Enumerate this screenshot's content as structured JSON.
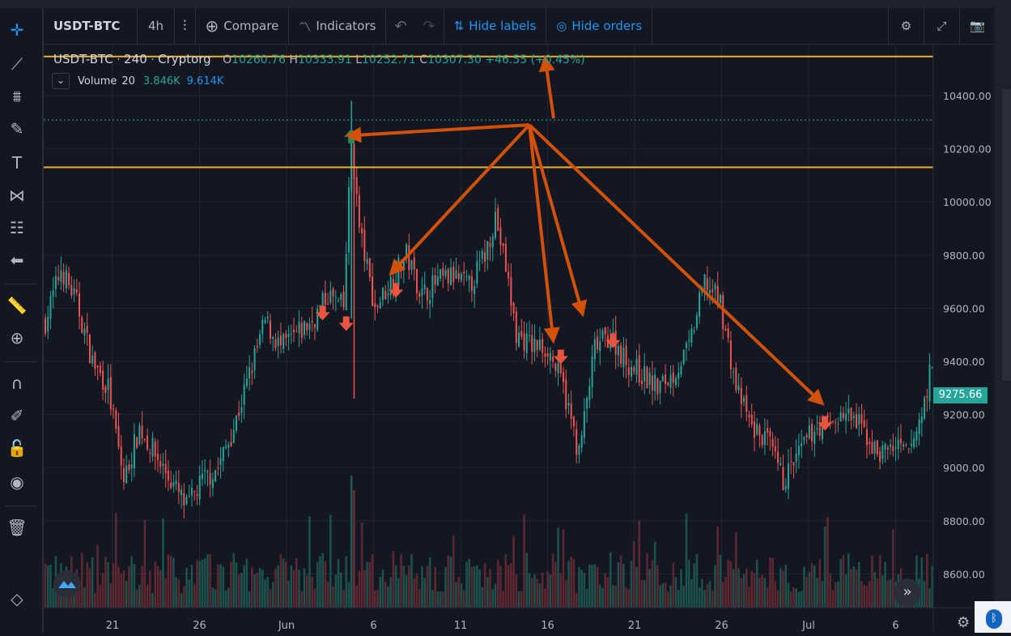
{
  "toolbar": {
    "symbol": "USDT-BTC",
    "interval": "4h",
    "compare_label": "Compare",
    "indicators_label": "Indicators",
    "hide_labels": "Hide labels",
    "hide_orders": "Hide orders"
  },
  "legend": {
    "symbol": "USDT-BTC",
    "interval": "240",
    "exchange": "Cryptorg",
    "open_label": "O",
    "open": "10260.76",
    "high_label": "H",
    "high": "10333.91",
    "low_label": "L",
    "low": "10252.71",
    "close_label": "C",
    "close": "10307.30",
    "change": "+46.55 (+0.45%)",
    "volume_label": "Volume",
    "volume_period": "20",
    "volume_a": "3.846K",
    "volume_b": "9.614K"
  },
  "last_price": "9275.66",
  "icons": {
    "sidebar": [
      "crosshair-icon",
      "trend-line-icon",
      "fib-icon",
      "brush-icon",
      "text-icon",
      "pattern-icon",
      "forecast-icon",
      "back-arrow-icon",
      "ruler-icon",
      "zoom-icon",
      "magnet-icon",
      "lock-pencil-icon",
      "lock-icon",
      "eye-icon",
      "trash-icon",
      "layers-icon"
    ],
    "toolbar": [
      "bar-style-icon",
      "compare-icon",
      "indicators-icon",
      "undo-icon",
      "redo-icon",
      "gear-icon",
      "fullscreen-icon",
      "camera-icon"
    ]
  },
  "colors": {
    "up": "#26a69a",
    "down": "#ef5350",
    "horizontal_line": "#f0b027",
    "dotted_line": "#26a69a",
    "annotation_arrow": "#d2510a",
    "buy_marker": "#2e8b57",
    "sell_marker": "#e8553e"
  },
  "chart_data": {
    "type": "candlestick",
    "x_tick_labels": [
      "21",
      "26",
      "Jun",
      "6",
      "11",
      "16",
      "21",
      "26",
      "Jul",
      "6"
    ],
    "y_tick_labels": [
      "10400.00",
      "10200.00",
      "10000.00",
      "9800.00",
      "9600.00",
      "9400.00",
      "9200.00",
      "9000.00",
      "8800.00",
      "8600.00"
    ],
    "ylim": [
      8500,
      10600
    ],
    "horizontal_lines": [
      10547,
      10130
    ],
    "dotted_line": 10308,
    "close_path": [
      [
        0,
        9550
      ],
      [
        6,
        9750
      ],
      [
        12,
        9620
      ],
      [
        18,
        9400
      ],
      [
        24,
        9300
      ],
      [
        30,
        8950
      ],
      [
        36,
        9150
      ],
      [
        42,
        9050
      ],
      [
        48,
        8950
      ],
      [
        54,
        8850
      ],
      [
        60,
        8950
      ],
      [
        66,
        9000
      ],
      [
        72,
        9150
      ],
      [
        78,
        9350
      ],
      [
        84,
        9550
      ],
      [
        90,
        9450
      ],
      [
        96,
        9500
      ],
      [
        102,
        9550
      ],
      [
        108,
        9650
      ],
      [
        114,
        9600
      ],
      [
        117,
        10230
      ],
      [
        120,
        9900
      ],
      [
        126,
        9600
      ],
      [
        132,
        9700
      ],
      [
        138,
        9800
      ],
      [
        144,
        9650
      ],
      [
        150,
        9700
      ],
      [
        156,
        9720
      ],
      [
        162,
        9680
      ],
      [
        168,
        9800
      ],
      [
        172,
        9950
      ],
      [
        176,
        9750
      ],
      [
        180,
        9500
      ],
      [
        186,
        9460
      ],
      [
        192,
        9450
      ],
      [
        198,
        9300
      ],
      [
        204,
        9050
      ],
      [
        210,
        9450
      ],
      [
        216,
        9500
      ],
      [
        222,
        9400
      ],
      [
        228,
        9350
      ],
      [
        234,
        9300
      ],
      [
        240,
        9350
      ],
      [
        246,
        9450
      ],
      [
        252,
        9700
      ],
      [
        258,
        9620
      ],
      [
        264,
        9300
      ],
      [
        270,
        9150
      ],
      [
        276,
        9100
      ],
      [
        282,
        8950
      ],
      [
        288,
        9050
      ],
      [
        294,
        9150
      ],
      [
        300,
        9170
      ],
      [
        306,
        9200
      ],
      [
        312,
        9150
      ],
      [
        318,
        9050
      ],
      [
        324,
        9080
      ],
      [
        330,
        9050
      ],
      [
        335,
        9200
      ],
      [
        338,
        9350
      ]
    ],
    "markers": [
      {
        "type": "buy",
        "x": 117,
        "y": 10245
      },
      {
        "type": "sell",
        "x": 106,
        "y": 9585
      },
      {
        "type": "sell",
        "x": 115,
        "y": 9545
      },
      {
        "type": "sell",
        "x": 134,
        "y": 9670
      },
      {
        "type": "sell",
        "x": 197,
        "y": 9420
      },
      {
        "type": "sell",
        "x": 217,
        "y": 9480
      },
      {
        "type": "sell",
        "x": 298,
        "y": 9170
      }
    ],
    "annotation_origin": {
      "x": 185,
      "y": 10290
    },
    "annotation_targets": [
      {
        "x": 117,
        "y": 10250
      },
      {
        "x": 133,
        "y": 9740
      },
      {
        "x": 194,
        "y": 9490
      },
      {
        "x": 205,
        "y": 9590
      },
      {
        "x": 296,
        "y": 9250
      }
    ]
  }
}
